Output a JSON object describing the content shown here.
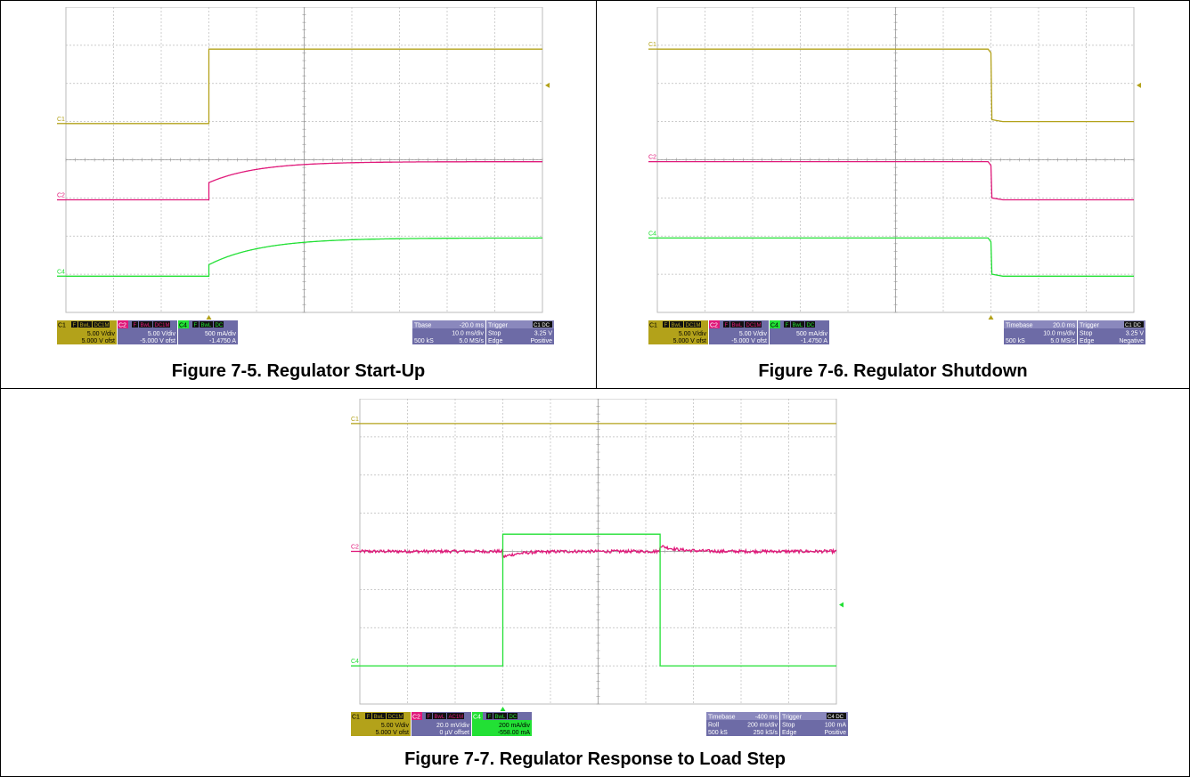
{
  "colors": {
    "c1": "#b3a21a",
    "c2": "#e0197a",
    "c4": "#22e035",
    "panel": "#6d6ba6",
    "grid": "#bbbbbb"
  },
  "figures": [
    {
      "caption": "Figure 7-5. Regulator Start-Up",
      "channel_labels": {
        "c1": "C1",
        "c2": "C2",
        "c4": "C4"
      },
      "info": {
        "c1": {
          "tag": "C1",
          "badges": [
            "F",
            "BwL",
            "DC1M"
          ],
          "line1": "5.00 V/div",
          "line2": "5.000 V ofst"
        },
        "c2": {
          "tag": "C2",
          "badges": [
            "F",
            "BwL",
            "DC1M"
          ],
          "line1": "5.00 V/div",
          "line2": "-5.000 V ofst"
        },
        "c4": {
          "tag": "C4",
          "badges": [
            "F",
            "BwL",
            "DC"
          ],
          "line1": "500 mA/div",
          "line2": "-1.4750 A"
        },
        "timebase": {
          "row1a": "Tbase",
          "row1b": "-20.0 ms",
          "row2a": "",
          "row2b": "10.0 ms/div",
          "row3a": "500 kS",
          "row3b": "5.0 MS/s"
        },
        "trigger": {
          "tag": "Trigger",
          "badge": "C1 DC",
          "row2a": "Stop",
          "row2b": "3.25 V",
          "row3a": "Edge",
          "row3b": "Positive"
        }
      }
    },
    {
      "caption": "Figure 7-6. Regulator Shutdown",
      "channel_labels": {
        "c1": "C1",
        "c2": "C2",
        "c4": "C4"
      },
      "info": {
        "c1": {
          "tag": "C1",
          "badges": [
            "F",
            "BwL",
            "DC1M"
          ],
          "line1": "5.00 V/div",
          "line2": "5.000 V ofst"
        },
        "c2": {
          "tag": "C2",
          "badges": [
            "F",
            "BwL",
            "DC1M"
          ],
          "line1": "5.00 V/div",
          "line2": "-5.000 V ofst"
        },
        "c4": {
          "tag": "C4",
          "badges": [
            "F",
            "BwL",
            "DC"
          ],
          "line1": "500 mA/div",
          "line2": "-1.4750 A"
        },
        "timebase": {
          "row1a": "Timebase",
          "row1b": "20.0 ms",
          "row2a": "",
          "row2b": "10.0 ms/div",
          "row3a": "500 kS",
          "row3b": "5.0 MS/s"
        },
        "trigger": {
          "tag": "Trigger",
          "badge": "C1 DC",
          "row2a": "Stop",
          "row2b": "3.25 V",
          "row3a": "Edge",
          "row3b": "Negative"
        }
      }
    },
    {
      "caption": "Figure 7-7. Regulator Response to Load Step",
      "channel_labels": {
        "c1": "C1",
        "c2": "C2",
        "c4": "C4"
      },
      "info": {
        "c1": {
          "tag": "C1",
          "badges": [
            "F",
            "BwL",
            "DC1M"
          ],
          "line1": "5.00 V/div",
          "line2": "5.000 V ofst"
        },
        "c2": {
          "tag": "C2",
          "badges": [
            "F",
            "BwL",
            "AC1M"
          ],
          "line1": "20.0 mV/div",
          "line2": "0 µV offset"
        },
        "c4": {
          "tag": "C4",
          "badges": [
            "F",
            "BwL",
            "DC"
          ],
          "line1": "200 mA/div",
          "line2": "-558.00 mA"
        },
        "timebase": {
          "row1a": "Timebase",
          "row1b": "-400 ms",
          "row2a": "Roll",
          "row2b": "200 ms/div",
          "row3a": "500 kS",
          "row3b": "250 kS/s"
        },
        "trigger": {
          "tag": "Trigger",
          "badge": "C4 DC",
          "row2a": "Stop",
          "row2b": "100 mA",
          "row3a": "Edge",
          "row3b": "Positive"
        }
      }
    }
  ],
  "chart_data": [
    {
      "type": "line",
      "title": "Figure 7-5. Regulator Start-Up",
      "x_unit": "divisions (10.0 ms/div)",
      "xlim": [
        0,
        10
      ],
      "ylim": [
        0,
        8
      ],
      "grid": true,
      "series": [
        {
          "name": "C1",
          "shape": "step_up",
          "x_event": 3.0,
          "y_before": 4.95,
          "y_after": 6.9
        },
        {
          "name": "C2",
          "shape": "exp_rise",
          "x_event": 3.0,
          "y_before": 2.95,
          "y_jump": 3.4,
          "y_final": 3.95,
          "tau_div": 1.0
        },
        {
          "name": "C4",
          "shape": "exp_rise",
          "x_event": 3.0,
          "y_before": 0.95,
          "y_jump": 1.25,
          "y_final": 1.95,
          "tau_div": 1.1
        }
      ]
    },
    {
      "type": "line",
      "title": "Figure 7-6. Regulator Shutdown",
      "x_unit": "divisions (10.0 ms/div)",
      "xlim": [
        0,
        10
      ],
      "ylim": [
        0,
        8
      ],
      "grid": true,
      "series": [
        {
          "name": "C1",
          "shape": "step_down",
          "x_event": 7.0,
          "y_before": 6.9,
          "y_after": 5.0
        },
        {
          "name": "C2",
          "shape": "step_down",
          "x_event": 7.0,
          "y_before": 3.95,
          "y_after": 2.95
        },
        {
          "name": "C4",
          "shape": "step_down",
          "x_event": 7.0,
          "y_before": 1.95,
          "y_after": 0.95
        }
      ]
    },
    {
      "type": "line",
      "title": "Figure 7-7. Regulator Response to Load Step",
      "x_unit": "divisions (200 ms/div)",
      "xlim": [
        0,
        10
      ],
      "ylim": [
        0,
        8
      ],
      "grid": true,
      "series": [
        {
          "name": "C1",
          "shape": "flat",
          "y": 7.35
        },
        {
          "name": "C2",
          "shape": "noisy_spikes",
          "y": 4.0,
          "events": [
            {
              "x": 3.0,
              "dy": -0.15
            },
            {
              "x": 6.3,
              "dy": 0.15
            }
          ]
        },
        {
          "name": "C4",
          "shape": "pulse",
          "y_low": 1.0,
          "y_high": 4.45,
          "x_rise": 3.0,
          "x_fall": 6.3
        }
      ]
    }
  ]
}
